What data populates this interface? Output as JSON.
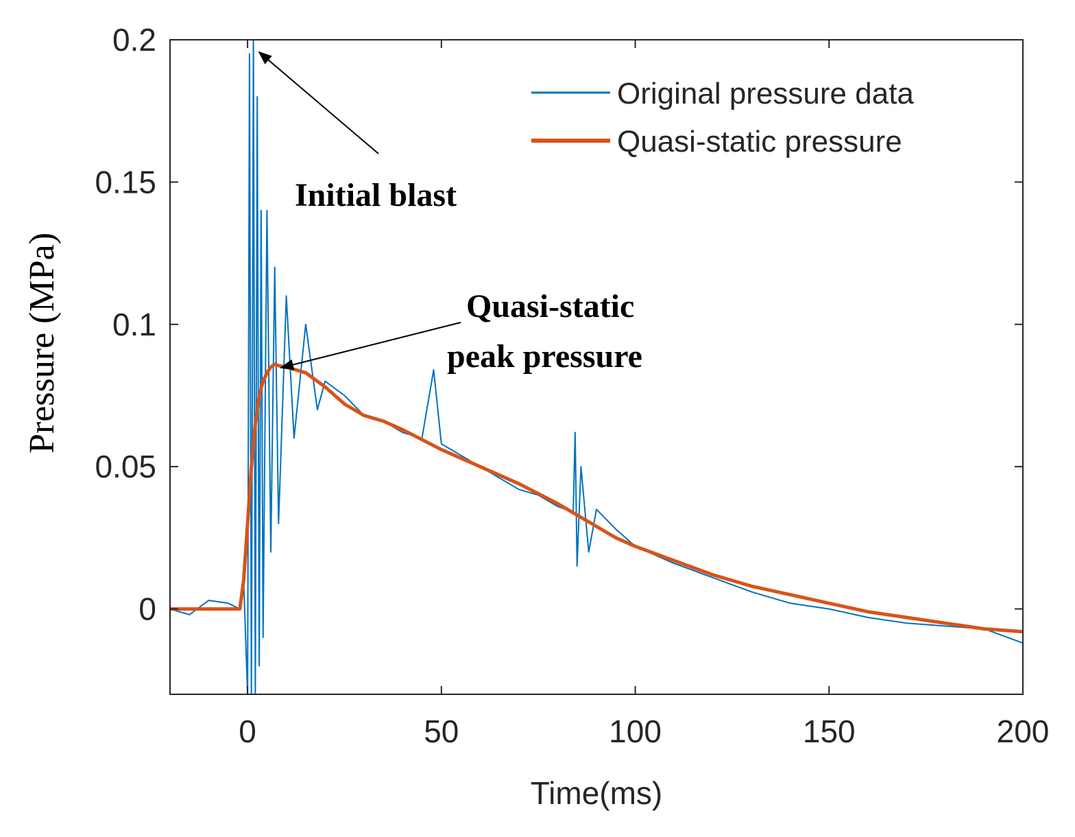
{
  "chart_data": {
    "type": "line",
    "title": "",
    "xlabel": "Time(ms)",
    "ylabel": "Pressure (MPa)",
    "xlim": [
      -20,
      200
    ],
    "ylim": [
      -0.03,
      0.2
    ],
    "xticks": [
      0,
      50,
      100,
      150,
      200
    ],
    "xtick_labels": [
      "0",
      "50",
      "100",
      "150",
      "200"
    ],
    "yticks": [
      0,
      0.05,
      0.1,
      0.15,
      0.2
    ],
    "ytick_labels": [
      "0",
      "0.05",
      "0.1",
      "0.15",
      "0.2"
    ],
    "grid": false,
    "legend_position": "top-right",
    "series": [
      {
        "name": "Original pressure data",
        "color": "#0072BD",
        "x": [
          -20,
          -15,
          -10,
          -5,
          -2,
          -1,
          0,
          0.5,
          1,
          1.5,
          2,
          2.5,
          3,
          3.5,
          4,
          5,
          6,
          7,
          8,
          10,
          12,
          15,
          18,
          20,
          25,
          30,
          35,
          40,
          45,
          48,
          50,
          55,
          60,
          65,
          70,
          75,
          80,
          84,
          84.5,
          85,
          86,
          88,
          90,
          95,
          100,
          110,
          120,
          130,
          140,
          150,
          160,
          170,
          180,
          190,
          200
        ],
        "y": [
          0,
          -0.002,
          0.003,
          0.002,
          0,
          0.01,
          -0.03,
          0.195,
          -0.03,
          0.2,
          -0.03,
          0.18,
          -0.02,
          0.14,
          -0.01,
          0.14,
          0.02,
          0.12,
          0.03,
          0.11,
          0.06,
          0.1,
          0.07,
          0.08,
          0.075,
          0.068,
          0.066,
          0.062,
          0.06,
          0.084,
          0.058,
          0.054,
          0.05,
          0.046,
          0.042,
          0.04,
          0.036,
          0.034,
          0.062,
          0.015,
          0.05,
          0.02,
          0.035,
          0.028,
          0.022,
          0.016,
          0.011,
          0.006,
          0.002,
          0,
          -0.003,
          -0.005,
          -0.006,
          -0.007,
          -0.012
        ]
      },
      {
        "name": "Quasi-static pressure",
        "color": "#D95319",
        "x": [
          -20,
          -10,
          -2,
          -1,
          0,
          1,
          2,
          3,
          4,
          5,
          6,
          7,
          8,
          10,
          15,
          20,
          25,
          30,
          35,
          40,
          50,
          60,
          70,
          80,
          85,
          90,
          95,
          100,
          110,
          120,
          130,
          140,
          150,
          160,
          170,
          180,
          190,
          200
        ],
        "y": [
          0,
          0,
          0,
          0.01,
          0.03,
          0.05,
          0.065,
          0.075,
          0.08,
          0.083,
          0.085,
          0.086,
          0.0855,
          0.085,
          0.083,
          0.078,
          0.072,
          0.068,
          0.066,
          0.063,
          0.056,
          0.05,
          0.044,
          0.037,
          0.033,
          0.029,
          0.025,
          0.022,
          0.017,
          0.012,
          0.008,
          0.005,
          0.002,
          -0.001,
          -0.003,
          -0.005,
          -0.007,
          -0.008
        ]
      }
    ],
    "annotations": [
      {
        "text": "Initial blast",
        "lines": [
          "Initial blast"
        ],
        "arrow_to": [
          1.5,
          0.2
        ]
      },
      {
        "text": "Quasi-static peak pressure",
        "lines": [
          "Quasi-static",
          "peak pressure"
        ],
        "arrow_to": [
          7,
          0.086
        ]
      }
    ]
  }
}
